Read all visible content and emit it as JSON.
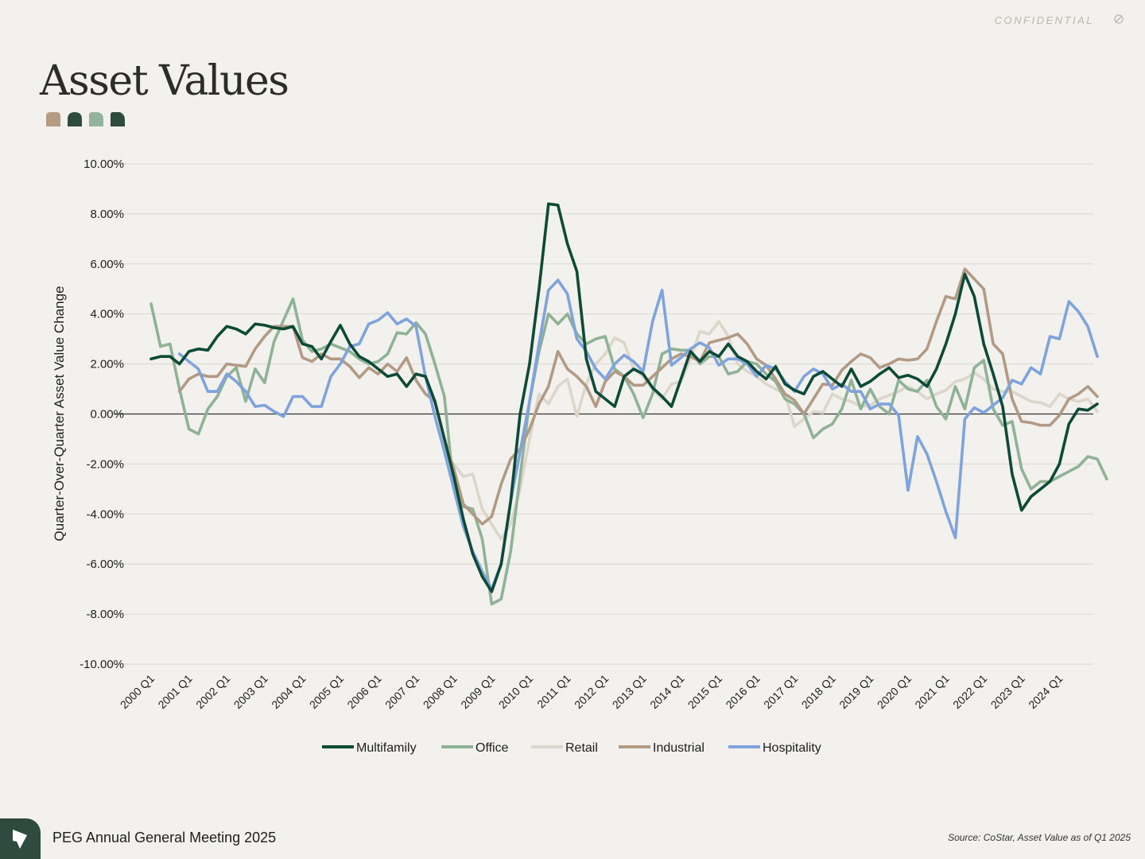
{
  "header": {
    "confidential": "CONFIDENTIAL",
    "confidential_icon": "no-entry-icon"
  },
  "title": "Asset Values",
  "title_marks": [
    {
      "icon": "leaf-mark-icon",
      "color": "#b59a84"
    },
    {
      "icon": "leaf-mark-icon",
      "color": "#2f4a3e"
    },
    {
      "icon": "leaf-mark-icon",
      "color": "#94b39c"
    },
    {
      "icon": "leaf-mark-icon",
      "color": "#2f4a3e"
    }
  ],
  "footer": {
    "logo_icon": "peg-logo-icon",
    "event": "PEG Annual General Meeting 2025",
    "source": "Source: CoStar, Asset Value as of Q1 2025"
  },
  "chart_data": {
    "type": "line",
    "title": "",
    "xlabel": "",
    "ylabel": "Quarter-Over-Quarter Asset Value Change",
    "ylim": [
      -10,
      10
    ],
    "y_ticks": [
      10,
      8,
      6,
      4,
      2,
      0,
      -2,
      -4,
      -6,
      -8,
      -10
    ],
    "y_tick_labels": [
      "10.00%",
      "8.00%",
      "6.00%",
      "4.00%",
      "2.00%",
      "0.00%",
      "-2.00%",
      "-4.00%",
      "-6.00%",
      "-8.00%",
      "-10.00%"
    ],
    "x_start": "2000 Q1",
    "x_tick_labels": [
      "2000 Q1",
      "2001 Q1",
      "2002 Q1",
      "2003 Q1",
      "2004 Q1",
      "2005 Q1",
      "2006 Q1",
      "2007 Q1",
      "2008 Q1",
      "2009 Q1",
      "2010 Q1",
      "2011 Q1",
      "2012 Q1",
      "2013 Q1",
      "2014 Q1",
      "2015 Q1",
      "2016 Q1",
      "2017 Q1",
      "2018 Q1",
      "2019 Q1",
      "2020 Q1",
      "2021 Q1",
      "2022 Q1",
      "2023 Q1",
      "2024 Q1"
    ],
    "legend_position": "bottom-center",
    "grid": true,
    "series": [
      {
        "name": "Multifamily",
        "color": "#0d4a37",
        "values": [
          2.2,
          2.3,
          2.3,
          2.0,
          2.5,
          2.6,
          2.55,
          3.1,
          3.5,
          3.4,
          3.2,
          3.6,
          3.55,
          3.45,
          3.4,
          3.5,
          2.8,
          2.7,
          2.2,
          2.9,
          3.55,
          2.8,
          2.3,
          2.1,
          1.8,
          1.5,
          1.6,
          1.1,
          1.6,
          1.5,
          0.5,
          -1.0,
          -2.5,
          -4.2,
          -5.6,
          -6.5,
          -7.1,
          -6.0,
          -3.5,
          0.0,
          2.0,
          5.0,
          8.4,
          8.35,
          6.8,
          5.7,
          2.2,
          0.9,
          0.6,
          0.3,
          1.5,
          1.8,
          1.6,
          1.05,
          0.7,
          0.3,
          1.4,
          2.5,
          2.1,
          2.5,
          2.3,
          2.8,
          2.3,
          2.1,
          1.7,
          1.4,
          1.9,
          1.2,
          0.95,
          0.8,
          1.5,
          1.7,
          1.4,
          1.1,
          1.8,
          1.1,
          1.3,
          1.6,
          1.85,
          1.45,
          1.55,
          1.4,
          1.1,
          1.8,
          2.8,
          4.0,
          5.6,
          4.7,
          2.8,
          1.6,
          0.3,
          -2.4,
          -3.85,
          -3.3,
          -3.0,
          -2.7,
          -2.0,
          -0.4,
          0.2,
          0.15,
          0.4
        ]
      },
      {
        "name": "Office",
        "color": "#8fb296",
        "values": [
          4.4,
          2.7,
          2.8,
          1.0,
          -0.6,
          -0.8,
          0.2,
          0.7,
          1.5,
          1.85,
          0.5,
          1.8,
          1.25,
          2.9,
          3.75,
          4.6,
          2.95,
          2.5,
          2.6,
          2.8,
          2.65,
          2.5,
          2.2,
          2.0,
          2.1,
          2.4,
          3.25,
          3.2,
          3.65,
          3.2,
          2.0,
          0.7,
          -3.0,
          -3.7,
          -3.8,
          -5.0,
          -7.6,
          -7.4,
          -5.5,
          -2.5,
          0.5,
          2.5,
          4.0,
          3.6,
          4.0,
          3.2,
          2.8,
          3.0,
          3.1,
          1.8,
          1.5,
          0.8,
          -0.15,
          0.8,
          2.4,
          2.6,
          2.55,
          2.55,
          2.0,
          2.3,
          2.3,
          1.6,
          1.7,
          2.1,
          2.0,
          1.6,
          1.3,
          0.6,
          0.4,
          0.0,
          -0.95,
          -0.6,
          -0.4,
          0.2,
          1.35,
          0.2,
          1.0,
          0.3,
          0.0,
          1.35,
          1.0,
          0.9,
          1.35,
          0.3,
          -0.2,
          1.1,
          0.2,
          1.85,
          2.15,
          0.2,
          -0.45,
          -0.3,
          -2.2,
          -3.0,
          -2.7,
          -2.7,
          -2.5,
          -2.3,
          -2.1,
          -1.7,
          -1.8,
          -2.6
        ]
      },
      {
        "name": "Retail",
        "color": "#dcd6cb",
        "values": [
          null,
          null,
          null,
          null,
          null,
          null,
          null,
          null,
          null,
          null,
          null,
          null,
          null,
          null,
          null,
          null,
          null,
          null,
          null,
          null,
          null,
          null,
          null,
          null,
          null,
          null,
          null,
          null,
          null,
          null,
          null,
          null,
          -2.0,
          -2.5,
          -2.4,
          -3.8,
          -4.4,
          -5.0,
          -4.4,
          -3.0,
          -1.0,
          0.8,
          0.4,
          1.1,
          1.4,
          -0.1,
          1.2,
          2.0,
          2.4,
          3.05,
          2.85,
          1.8,
          1.5,
          1.0,
          0.6,
          1.2,
          1.3,
          2.2,
          3.3,
          3.2,
          3.7,
          3.1,
          2.0,
          1.7,
          1.5,
          1.2,
          1.0,
          0.8,
          -0.5,
          -0.2,
          0.1,
          0.05,
          0.8,
          0.6,
          0.5,
          0.3,
          0.35,
          0.6,
          0.75,
          0.9,
          1.1,
          0.9,
          0.6,
          0.8,
          0.95,
          1.3,
          1.4,
          1.65,
          1.4,
          1.0,
          0.9,
          0.9,
          0.7,
          0.5,
          0.45,
          0.3,
          0.8,
          0.6,
          0.5,
          0.6,
          0.1
        ]
      },
      {
        "name": "Industrial",
        "color": "#b29a84",
        "values": [
          null,
          null,
          null,
          0.9,
          1.4,
          1.6,
          1.5,
          1.5,
          2.0,
          1.95,
          1.9,
          2.6,
          3.1,
          3.5,
          3.5,
          3.5,
          2.25,
          2.1,
          2.4,
          2.2,
          2.2,
          1.9,
          1.45,
          1.85,
          1.6,
          2.0,
          1.7,
          2.25,
          1.35,
          0.8,
          0.5,
          -1.0,
          -2.2,
          -3.6,
          -4.0,
          -4.4,
          -4.1,
          -2.8,
          -1.8,
          -1.4,
          -0.6,
          0.4,
          1.1,
          2.5,
          1.8,
          1.5,
          1.1,
          0.3,
          1.3,
          1.7,
          1.5,
          1.15,
          1.15,
          1.5,
          1.85,
          2.2,
          2.4,
          2.3,
          2.1,
          2.85,
          2.95,
          3.05,
          3.2,
          2.8,
          2.2,
          1.95,
          1.4,
          0.8,
          0.55,
          0.0,
          0.6,
          1.2,
          1.15,
          1.75,
          2.1,
          2.4,
          2.25,
          1.85,
          2.0,
          2.2,
          2.15,
          2.2,
          2.6,
          3.7,
          4.7,
          4.6,
          5.8,
          5.4,
          5.0,
          2.8,
          2.4,
          0.6,
          -0.3,
          -0.35,
          -0.45,
          -0.45,
          -0.05,
          0.6,
          0.8,
          1.1,
          0.7
        ]
      },
      {
        "name": "Hospitality",
        "color": "#7fa3dc",
        "values": [
          null,
          null,
          null,
          2.4,
          2.1,
          1.8,
          0.9,
          0.9,
          1.6,
          1.3,
          0.9,
          0.3,
          0.35,
          0.1,
          -0.1,
          0.7,
          0.7,
          0.3,
          0.3,
          1.5,
          2.0,
          2.7,
          2.8,
          3.6,
          3.75,
          4.05,
          3.6,
          3.8,
          3.5,
          1.5,
          -0.1,
          -1.5,
          -3.0,
          -4.5,
          -5.5,
          -6.3,
          -7.0,
          -6.0,
          -3.5,
          -1.5,
          0.5,
          2.8,
          4.95,
          5.35,
          4.8,
          3.0,
          2.5,
          1.8,
          1.4,
          2.0,
          2.35,
          2.1,
          1.7,
          3.7,
          4.95,
          1.95,
          2.25,
          2.6,
          2.85,
          2.65,
          1.95,
          2.2,
          2.2,
          2.0,
          1.5,
          1.95,
          1.8,
          1.3,
          0.9,
          1.5,
          1.8,
          1.6,
          1.0,
          1.2,
          0.9,
          0.9,
          0.2,
          0.4,
          0.4,
          -0.05,
          -3.05,
          -0.9,
          -1.6,
          -2.7,
          -3.9,
          -4.95,
          -0.2,
          0.25,
          0.05,
          0.35,
          0.65,
          1.35,
          1.2,
          1.85,
          1.6,
          3.1,
          3.0,
          4.5,
          4.1,
          3.5,
          2.3
        ]
      }
    ]
  }
}
